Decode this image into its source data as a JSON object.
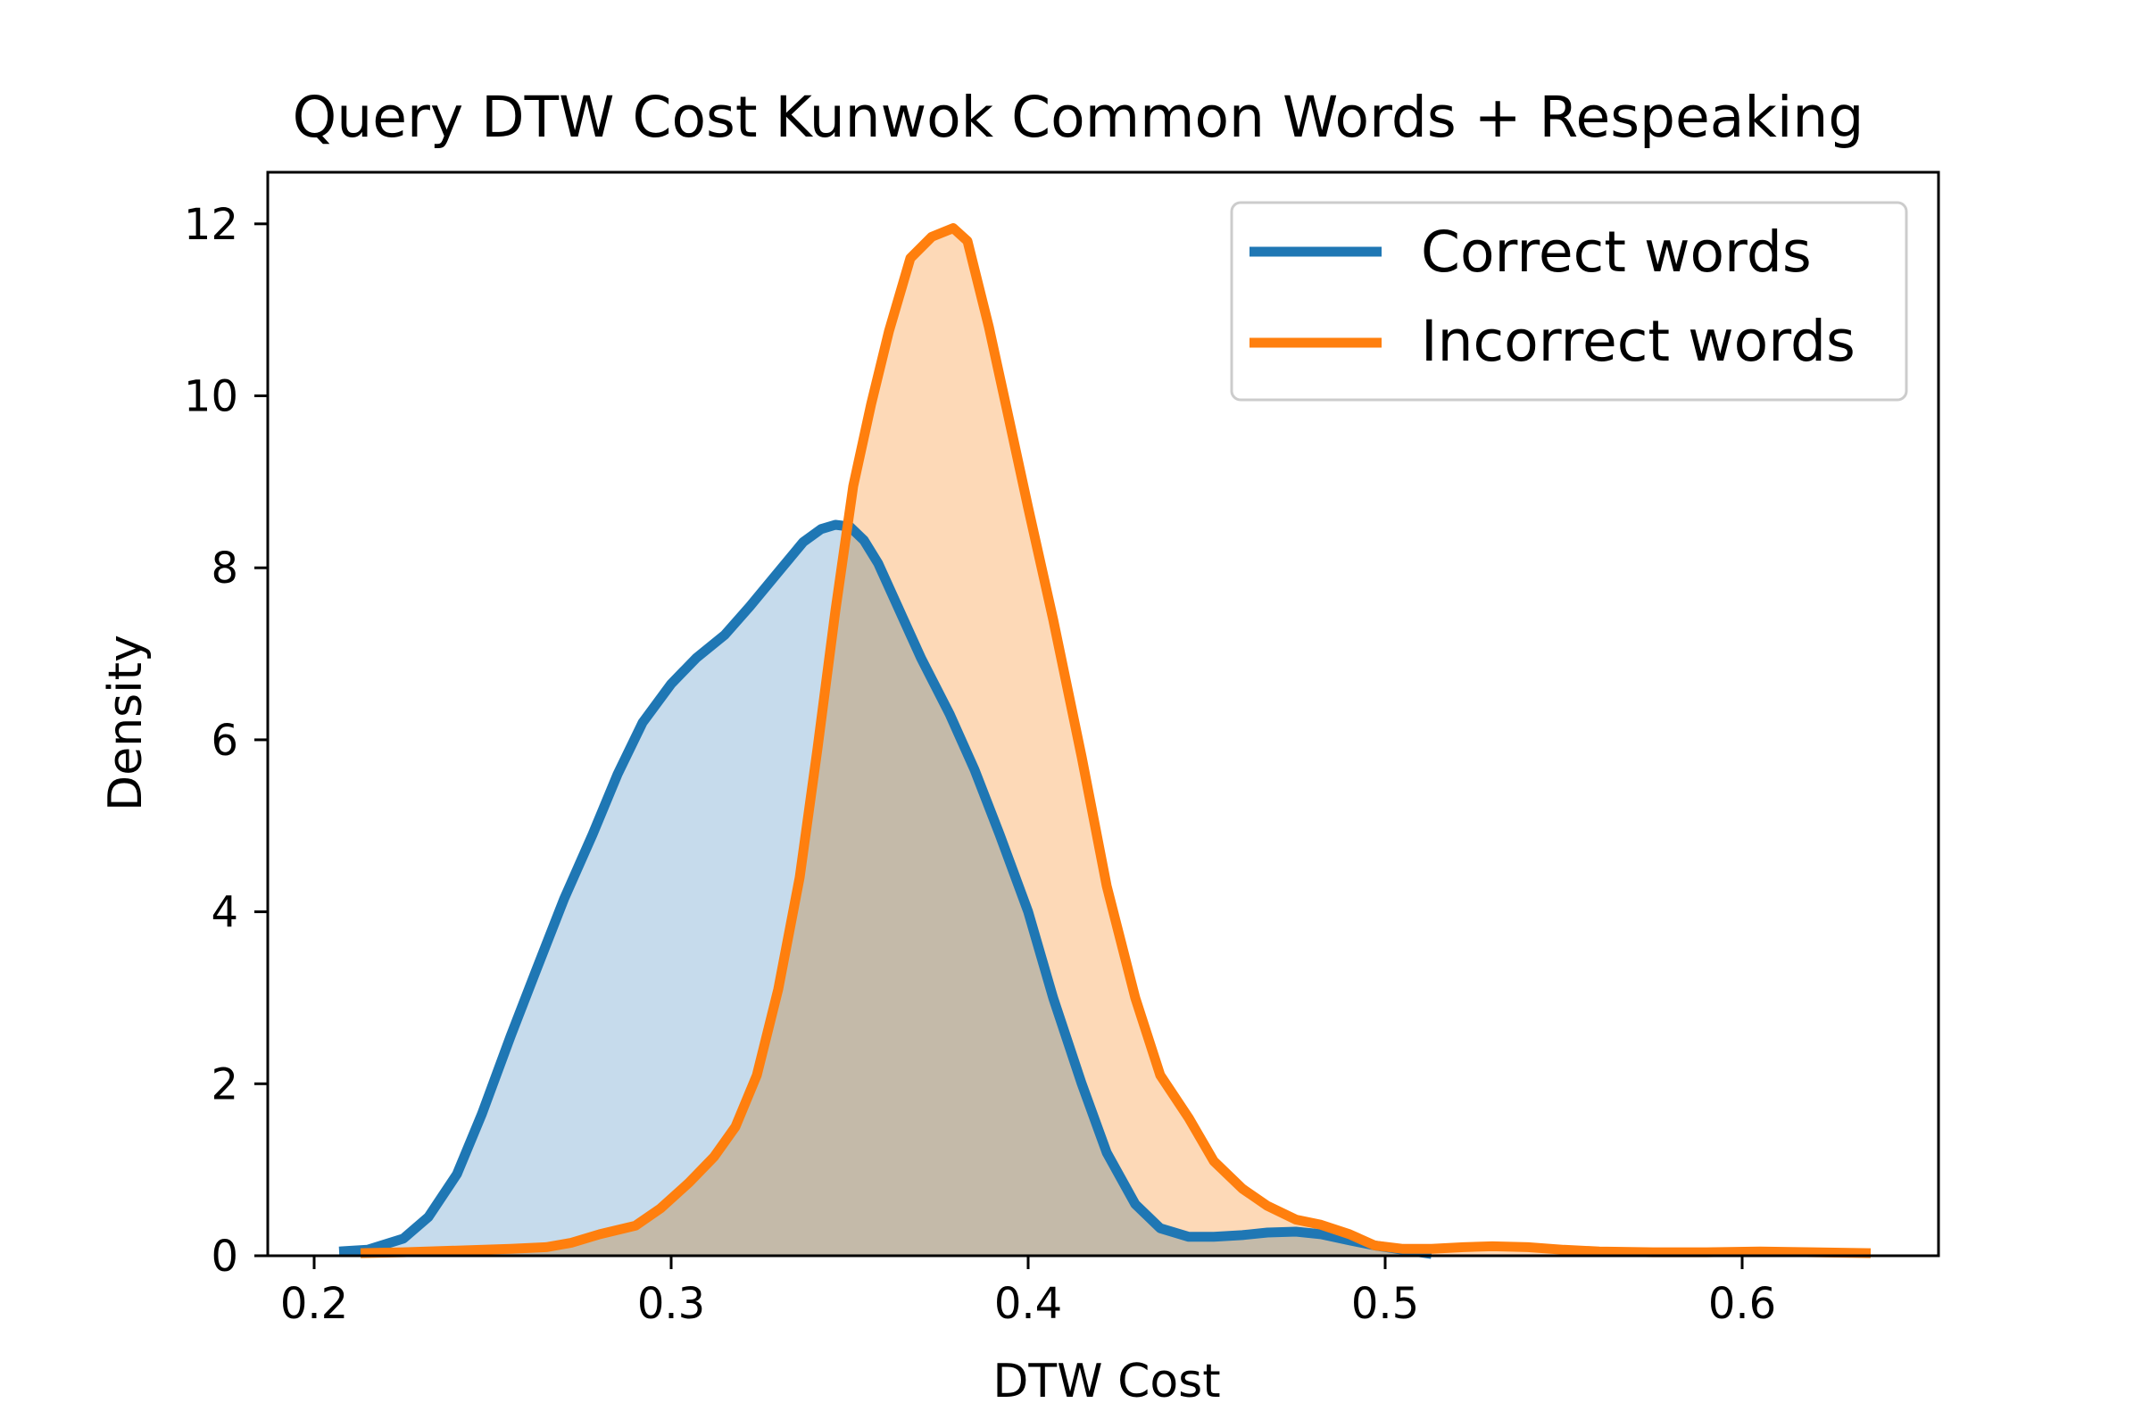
{
  "chart_data": {
    "type": "area",
    "title": "Query DTW Cost Kunwok Common Words + Respeaking",
    "xlabel": "DTW Cost",
    "ylabel": "Density",
    "xlim": [
      0.187,
      0.655
    ],
    "ylim": [
      0,
      12.6
    ],
    "xticks": [
      0.2,
      0.3,
      0.4,
      0.5,
      0.6
    ],
    "xtick_labels": [
      "0.2",
      "0.3",
      "0.4",
      "0.5",
      "0.6"
    ],
    "yticks": [
      0,
      2,
      4,
      6,
      8,
      10,
      12
    ],
    "ytick_labels": [
      "0",
      "2",
      "4",
      "6",
      "8",
      "10",
      "12"
    ],
    "grid": false,
    "legend_position": "top-right",
    "series": [
      {
        "name": "Correct words",
        "color": "#1f77b4",
        "fill_color": "#c6dbec",
        "x": [
          0.207,
          0.215,
          0.225,
          0.232,
          0.24,
          0.247,
          0.255,
          0.262,
          0.27,
          0.278,
          0.285,
          0.292,
          0.3,
          0.307,
          0.315,
          0.322,
          0.33,
          0.337,
          0.342,
          0.346,
          0.35,
          0.354,
          0.358,
          0.364,
          0.37,
          0.378,
          0.385,
          0.392,
          0.4,
          0.407,
          0.415,
          0.422,
          0.43,
          0.437,
          0.445,
          0.452,
          0.46,
          0.467,
          0.475,
          0.482,
          0.49,
          0.497,
          0.505,
          0.513
        ],
        "y": [
          0.05,
          0.07,
          0.2,
          0.45,
          0.95,
          1.65,
          2.55,
          3.3,
          4.15,
          4.9,
          5.6,
          6.2,
          6.65,
          6.95,
          7.22,
          7.55,
          7.95,
          8.3,
          8.45,
          8.5,
          8.48,
          8.32,
          8.05,
          7.5,
          6.95,
          6.3,
          5.65,
          4.9,
          4.0,
          3.0,
          2.0,
          1.2,
          0.6,
          0.32,
          0.22,
          0.22,
          0.24,
          0.27,
          0.28,
          0.25,
          0.18,
          0.12,
          0.07,
          0.02
        ]
      },
      {
        "name": "Incorrect words",
        "color": "#ff7f0e",
        "fill_color": "#fdd9b7",
        "x": [
          0.213,
          0.225,
          0.24,
          0.255,
          0.265,
          0.272,
          0.28,
          0.29,
          0.297,
          0.305,
          0.312,
          0.318,
          0.324,
          0.33,
          0.336,
          0.341,
          0.346,
          0.351,
          0.356,
          0.361,
          0.367,
          0.373,
          0.379,
          0.383,
          0.386,
          0.389,
          0.394,
          0.4,
          0.407,
          0.415,
          0.422,
          0.43,
          0.437,
          0.445,
          0.452,
          0.46,
          0.467,
          0.475,
          0.482,
          0.49,
          0.497,
          0.505,
          0.513,
          0.522,
          0.53,
          0.54,
          0.55,
          0.56,
          0.575,
          0.59,
          0.605,
          0.62,
          0.636
        ],
        "y": [
          0.03,
          0.04,
          0.06,
          0.08,
          0.1,
          0.15,
          0.25,
          0.35,
          0.55,
          0.85,
          1.15,
          1.5,
          2.1,
          3.1,
          4.4,
          5.9,
          7.5,
          8.95,
          9.9,
          10.75,
          11.6,
          11.85,
          11.95,
          11.8,
          11.3,
          10.8,
          9.85,
          8.7,
          7.4,
          5.8,
          4.3,
          3.0,
          2.1,
          1.6,
          1.1,
          0.78,
          0.58,
          0.42,
          0.36,
          0.25,
          0.12,
          0.08,
          0.08,
          0.1,
          0.11,
          0.1,
          0.07,
          0.05,
          0.04,
          0.04,
          0.05,
          0.04,
          0.03
        ]
      }
    ]
  }
}
